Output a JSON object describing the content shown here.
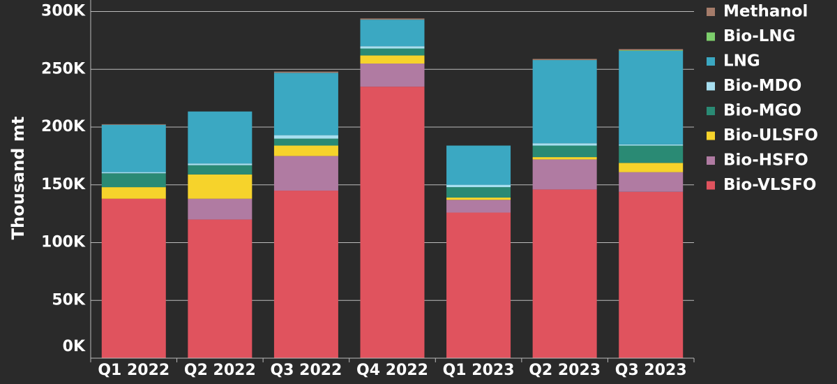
{
  "chart_data": {
    "type": "stacked_bar",
    "y_label": "Thousand mt",
    "categories": [
      "Q1 2022",
      "Q2 2022",
      "Q3 2022",
      "Q4 2022",
      "Q1 2023",
      "Q2 2023",
      "Q3 2023"
    ],
    "series": [
      {
        "name": "Bio-VLSFO",
        "color": "#e0535e",
        "values": [
          138000,
          120000,
          145000,
          235000,
          126000,
          146000,
          144000
        ]
      },
      {
        "name": "Bio-HSFO",
        "color": "#b07ba2",
        "values": [
          0,
          18000,
          30000,
          20000,
          11000,
          26000,
          17000
        ]
      },
      {
        "name": "Bio-ULSFO",
        "color": "#f6d32b",
        "values": [
          10000,
          21000,
          9000,
          7000,
          2000,
          2000,
          8000
        ]
      },
      {
        "name": "Bio-MGO",
        "color": "#2a8a74",
        "values": [
          12000,
          8000,
          6000,
          6000,
          9000,
          10000,
          15000
        ]
      },
      {
        "name": "Bio-MDO",
        "color": "#a7dff0",
        "values": [
          1000,
          1500,
          3000,
          2000,
          2000,
          2000,
          1000
        ]
      },
      {
        "name": "LNG",
        "color": "#3ba8c2",
        "values": [
          41000,
          45000,
          54000,
          23000,
          34000,
          72000,
          81000
        ]
      },
      {
        "name": "Bio-LNG",
        "color": "#7dcf6c",
        "values": [
          0,
          0,
          0,
          0,
          0,
          0,
          500
        ]
      },
      {
        "name": "Methanol",
        "color": "#a57c6a",
        "values": [
          500,
          0,
          1000,
          1000,
          0,
          1000,
          1000
        ]
      }
    ],
    "ylim": [
      0,
      310000
    ],
    "yticks": [
      {
        "value": 0,
        "label": "0K"
      },
      {
        "value": 50000,
        "label": "50K"
      },
      {
        "value": 100000,
        "label": "100K"
      },
      {
        "value": 150000,
        "label": "150K"
      },
      {
        "value": 200000,
        "label": "200K"
      },
      {
        "value": 250000,
        "label": "250K"
      },
      {
        "value": 300000,
        "label": "300K"
      }
    ],
    "grid": true,
    "legend": "right"
  }
}
